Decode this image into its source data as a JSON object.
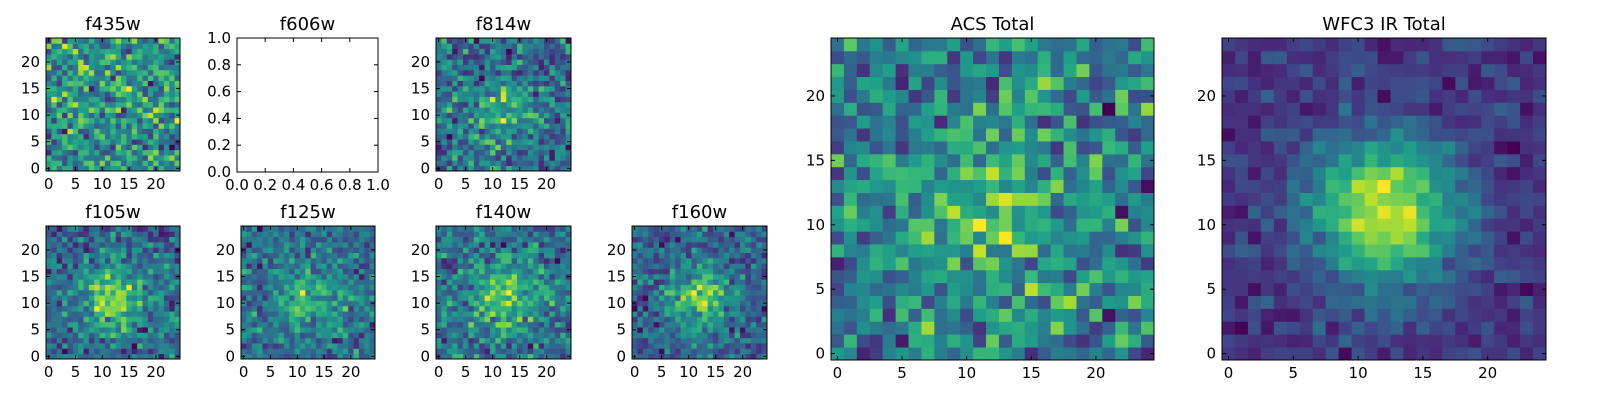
{
  "figure": {
    "background": "#ffffff",
    "colormap": "viridis"
  },
  "chart_data": [
    {
      "type": "heatmap",
      "title": "f435w",
      "n": 25,
      "seed": 11,
      "signal": 0.05,
      "noise": 1.0,
      "xticks": [
        0,
        5,
        10,
        15,
        20
      ],
      "yticks": [
        0,
        5,
        10,
        15,
        20
      ],
      "xlim": [
        -0.5,
        24.5
      ],
      "ylim": [
        -0.5,
        24.5
      ]
    },
    {
      "type": "empty",
      "title": "f606w",
      "xticks": [
        "0.0",
        "0.2",
        "0.4",
        "0.6",
        "0.8",
        "1.0"
      ],
      "yticks": [
        "0.0",
        "0.2",
        "0.4",
        "0.6",
        "0.8",
        "1.0"
      ],
      "xlim": [
        0,
        1
      ],
      "ylim": [
        0,
        1
      ]
    },
    {
      "type": "heatmap",
      "title": "f814w",
      "n": 25,
      "seed": 23,
      "signal": 0.35,
      "noise": 1.0,
      "xticks": [
        0,
        5,
        10,
        15,
        20
      ],
      "yticks": [
        0,
        5,
        10,
        15,
        20
      ],
      "xlim": [
        -0.5,
        24.5
      ],
      "ylim": [
        -0.5,
        24.5
      ]
    },
    {
      "type": "heatmap",
      "title": "f105w",
      "n": 25,
      "seed": 37,
      "signal": 0.75,
      "noise": 1.0,
      "xticks": [
        0,
        5,
        10,
        15,
        20
      ],
      "yticks": [
        0,
        5,
        10,
        15,
        20
      ],
      "xlim": [
        -0.5,
        24.5
      ],
      "ylim": [
        -0.5,
        24.5
      ]
    },
    {
      "type": "heatmap",
      "title": "f125w",
      "n": 25,
      "seed": 41,
      "signal": 0.5,
      "noise": 1.0,
      "xticks": [
        0,
        5,
        10,
        15,
        20
      ],
      "yticks": [
        0,
        5,
        10,
        15,
        20
      ],
      "xlim": [
        -0.5,
        24.5
      ],
      "ylim": [
        -0.5,
        24.5
      ]
    },
    {
      "type": "heatmap",
      "title": "f140w",
      "n": 25,
      "seed": 53,
      "signal": 0.6,
      "noise": 1.0,
      "xticks": [
        0,
        5,
        10,
        15,
        20
      ],
      "yticks": [
        0,
        5,
        10,
        15,
        20
      ],
      "xlim": [
        -0.5,
        24.5
      ],
      "ylim": [
        -0.5,
        24.5
      ]
    },
    {
      "type": "heatmap",
      "title": "f160w",
      "n": 25,
      "seed": 67,
      "signal": 0.75,
      "noise": 0.9,
      "xticks": [
        0,
        5,
        10,
        15,
        20
      ],
      "yticks": [
        0,
        5,
        10,
        15,
        20
      ],
      "xlim": [
        -0.5,
        24.5
      ],
      "ylim": [
        -0.5,
        24.5
      ]
    },
    {
      "type": "heatmap",
      "title": "ACS Total",
      "n": 25,
      "seed": 79,
      "signal": 0.35,
      "noise": 1.0,
      "xticks": [
        0,
        5,
        10,
        15,
        20
      ],
      "yticks": [
        0,
        5,
        10,
        15,
        20
      ],
      "xlim": [
        -0.5,
        24.5
      ],
      "ylim": [
        -0.5,
        24.5
      ]
    },
    {
      "type": "heatmap",
      "title": "WFC3 IR Total",
      "n": 25,
      "seed": 97,
      "signal": 1.2,
      "noise": 0.45,
      "xticks": [
        0,
        5,
        10,
        15,
        20
      ],
      "yticks": [
        0,
        5,
        10,
        15,
        20
      ],
      "xlim": [
        -0.5,
        24.5
      ],
      "ylim": [
        -0.5,
        24.5
      ]
    }
  ]
}
